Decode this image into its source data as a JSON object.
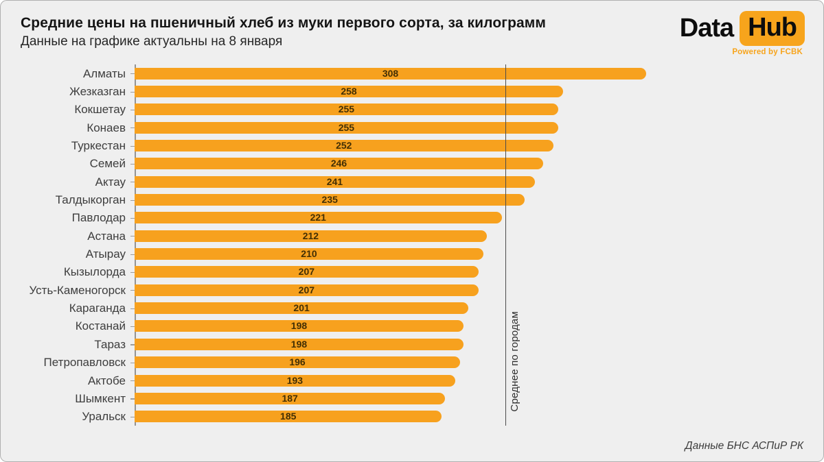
{
  "header": {
    "title": "Средние цены на пшеничный хлеб из муки первого сорта, за килограмм",
    "subtitle": "Данные на графике актуальны на 8 января"
  },
  "logo": {
    "part1": "Data",
    "part2": "Hub",
    "powered_by": "Powered by FCBK"
  },
  "chart_data": {
    "type": "bar",
    "orientation": "horizontal",
    "title": "Средние цены на пшеничный хлеб из муки первого сорта, за килограмм",
    "categories": [
      "Алматы",
      "Жезказган",
      "Кокшетау",
      "Конаев",
      "Туркестан",
      "Семей",
      "Актау",
      "Талдыкорган",
      "Павлодар",
      "Астана",
      "Атырау",
      "Кызылорда",
      "Усть-Каменогорск",
      "Караганда",
      "Костанай",
      "Тараз",
      "Петропавловск",
      "Актобе",
      "Шымкент",
      "Уральск"
    ],
    "values": [
      308,
      258,
      255,
      255,
      252,
      246,
      241,
      235,
      221,
      212,
      210,
      207,
      207,
      201,
      198,
      198,
      196,
      193,
      187,
      185
    ],
    "value_labels_shown": true,
    "xlim": [
      0,
      308
    ],
    "grid": false,
    "average_line": {
      "value": 223,
      "label": "Среднее по городам"
    }
  },
  "footer": {
    "source": "Данные БНС АСПиР РК"
  },
  "colors": {
    "background": "#EFEFEF",
    "bar": "#F7A11E",
    "value_label": "#432f04",
    "axis_line": "#939393",
    "average_line": "#4c4c4c",
    "logo_accent": "#F7A41C"
  }
}
